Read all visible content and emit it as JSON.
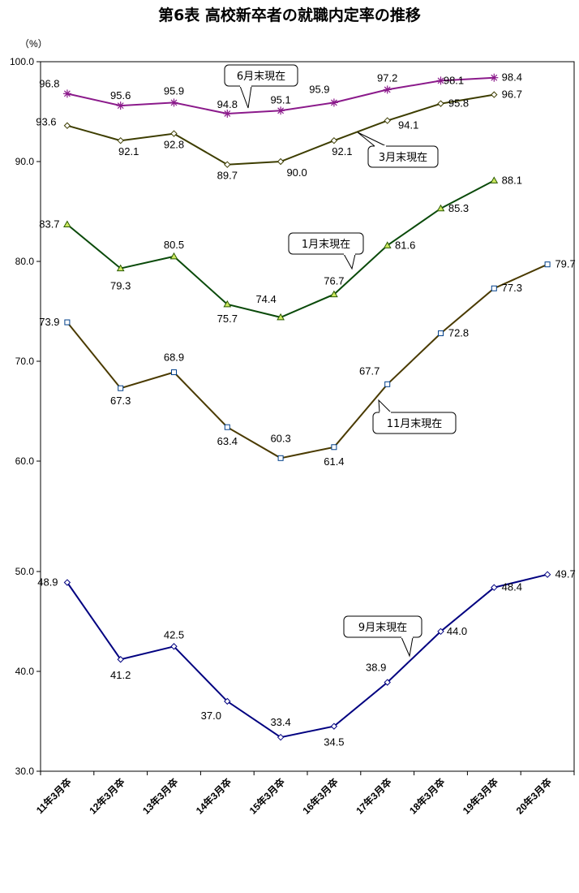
{
  "chart_data": {
    "type": "line",
    "title": "第6表 高校新卒者の就職内定率の推移",
    "ylabel": "（%）",
    "ylim": [
      30,
      100
    ],
    "yticks": [
      "30.0",
      "40.0",
      "50.0",
      "60.0",
      "70.0",
      "80.0",
      "90.0",
      "100.0"
    ],
    "grid": false,
    "categories": [
      "11年3月卒",
      "12年3月卒",
      "13年3月卒",
      "14年3月卒",
      "15年3月卒",
      "16年3月卒",
      "17年3月卒",
      "18年3月卒",
      "19年3月卒",
      "20年3月卒"
    ],
    "series": [
      {
        "name": "6月末現在",
        "color": "#8b1a8b",
        "marker": "star",
        "values": [
          96.8,
          95.6,
          95.9,
          94.8,
          95.1,
          95.9,
          97.2,
          98.1,
          98.4,
          null
        ],
        "labels": [
          "96.8",
          "95.6",
          "95.9",
          "94.8",
          "95.1",
          "95.9",
          "97.2",
          "98.1",
          "98.4",
          ""
        ]
      },
      {
        "name": "3月末現在",
        "color": "#3d3d00",
        "marker": "diamond",
        "values": [
          93.6,
          92.1,
          92.8,
          89.7,
          90.0,
          92.1,
          94.1,
          95.8,
          96.7,
          null
        ],
        "labels": [
          "93.6",
          "92.1",
          "92.8",
          "89.7",
          "90.0",
          "92.1",
          "94.1",
          "95.8",
          "96.7",
          ""
        ]
      },
      {
        "name": "1月末現在",
        "color": "#0a4a0a",
        "marker": "triangle",
        "values": [
          83.7,
          79.3,
          80.5,
          75.7,
          74.4,
          76.7,
          81.6,
          85.3,
          88.1,
          null
        ],
        "labels": [
          "83.7",
          "79.3",
          "80.5",
          "75.7",
          "74.4",
          "76.7",
          "81.6",
          "85.3",
          "88.1",
          ""
        ]
      },
      {
        "name": "11月末現在",
        "color": "#4a3a00",
        "marker": "square",
        "values": [
          73.9,
          67.3,
          68.9,
          63.4,
          60.3,
          61.4,
          67.7,
          72.8,
          77.3,
          79.7
        ],
        "labels": [
          "73.9",
          "67.3",
          "68.9",
          "63.4",
          "60.3",
          "61.4",
          "67.7",
          "72.8",
          "77.3",
          "79.7"
        ]
      },
      {
        "name": "9月末現在",
        "color": "#000080",
        "marker": "diamond",
        "values": [
          48.9,
          41.2,
          42.5,
          37.0,
          33.4,
          34.5,
          38.9,
          44.0,
          48.4,
          49.7
        ],
        "labels": [
          "48.9",
          "41.2",
          "42.5",
          "37.0",
          "33.4",
          "34.5",
          "38.9",
          "44.0",
          "48.4",
          "49.7"
        ]
      }
    ]
  }
}
